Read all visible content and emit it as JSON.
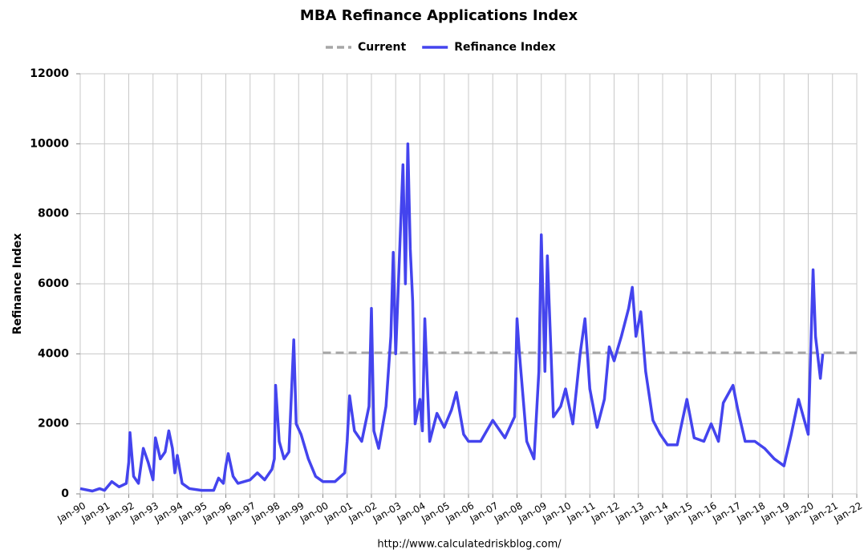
{
  "chart_data": {
    "type": "line",
    "title": "MBA Refinance Applications Index",
    "y_label": "Refinance Index",
    "source": "http://www.calculatedriskblog.com/",
    "xlim": [
      1990,
      2022
    ],
    "xticks": [
      {
        "value": 1990,
        "label": "Jan-90"
      },
      {
        "value": 1991,
        "label": "Jan-91"
      },
      {
        "value": 1992,
        "label": "Jan-92"
      },
      {
        "value": 1993,
        "label": "Jan-93"
      },
      {
        "value": 1994,
        "label": "Jan-94"
      },
      {
        "value": 1995,
        "label": "Jan-95"
      },
      {
        "value": 1996,
        "label": "Jan-96"
      },
      {
        "value": 1997,
        "label": "Jan-97"
      },
      {
        "value": 1998,
        "label": "Jan-98"
      },
      {
        "value": 1999,
        "label": "Jan-99"
      },
      {
        "value": 2000,
        "label": "Jan-00"
      },
      {
        "value": 2001,
        "label": "Jan-01"
      },
      {
        "value": 2002,
        "label": "Jan-02"
      },
      {
        "value": 2003,
        "label": "Jan-03"
      },
      {
        "value": 2004,
        "label": "Jan-04"
      },
      {
        "value": 2005,
        "label": "Jan-05"
      },
      {
        "value": 2006,
        "label": "Jan-06"
      },
      {
        "value": 2007,
        "label": "Jan-07"
      },
      {
        "value": 2008,
        "label": "Jan-08"
      },
      {
        "value": 2009,
        "label": "Jan-09"
      },
      {
        "value": 2010,
        "label": "Jan-10"
      },
      {
        "value": 2011,
        "label": "Jan-11"
      },
      {
        "value": 2012,
        "label": "Jan-12"
      },
      {
        "value": 2013,
        "label": "Jan-13"
      },
      {
        "value": 2014,
        "label": "Jan-14"
      },
      {
        "value": 2015,
        "label": "Jan-15"
      },
      {
        "value": 2016,
        "label": "Jan-16"
      },
      {
        "value": 2017,
        "label": "Jan-17"
      },
      {
        "value": 2018,
        "label": "Jan-18"
      },
      {
        "value": 2019,
        "label": "Jan-19"
      },
      {
        "value": 2020,
        "label": "Jan-20"
      },
      {
        "value": 2021,
        "label": "Jan-21"
      },
      {
        "value": 2022,
        "label": "Jan-22"
      }
    ],
    "ylim": [
      0,
      12000
    ],
    "yticks": [
      0,
      2000,
      4000,
      6000,
      8000,
      10000,
      12000
    ],
    "grid": true,
    "series": [
      {
        "name": "Current",
        "color": "#a6a6a6",
        "dashed": true,
        "x": [
          2000,
          2022
        ],
        "values": [
          4030,
          4030
        ]
      },
      {
        "name": "Refinance Index",
        "color": "#4444ee",
        "dashed": false,
        "x": [
          1990.0,
          1990.5,
          1990.8,
          1991.0,
          1991.3,
          1991.6,
          1991.9,
          1992.0,
          1992.05,
          1992.2,
          1992.4,
          1992.6,
          1992.8,
          1993.0,
          1993.1,
          1993.3,
          1993.5,
          1993.65,
          1993.8,
          1993.9,
          1994.0,
          1994.2,
          1994.5,
          1995.0,
          1995.5,
          1995.7,
          1995.9,
          1996.0,
          1996.1,
          1996.3,
          1996.5,
          1997.0,
          1997.3,
          1997.6,
          1997.9,
          1998.0,
          1998.05,
          1998.2,
          1998.4,
          1998.6,
          1998.8,
          1998.9,
          1999.1,
          1999.4,
          1999.7,
          2000.0,
          2000.5,
          2000.9,
          2001.0,
          2001.1,
          2001.3,
          2001.6,
          2001.9,
          2002.0,
          2002.1,
          2002.3,
          2002.6,
          2002.8,
          2002.9,
          2003.0,
          2003.1,
          2003.3,
          2003.4,
          2003.5,
          2003.6,
          2003.7,
          2003.8,
          2004.0,
          2004.1,
          2004.2,
          2004.4,
          2004.7,
          2005.0,
          2005.3,
          2005.5,
          2005.8,
          2006.0,
          2006.5,
          2007.0,
          2007.5,
          2007.9,
          2008.0,
          2008.1,
          2008.4,
          2008.7,
          2008.9,
          2009.0,
          2009.15,
          2009.25,
          2009.5,
          2009.8,
          2010.0,
          2010.3,
          2010.6,
          2010.8,
          2011.0,
          2011.3,
          2011.6,
          2011.8,
          2012.0,
          2012.3,
          2012.6,
          2012.75,
          2012.9,
          2013.1,
          2013.3,
          2013.6,
          2013.9,
          2014.2,
          2014.6,
          2015.0,
          2015.3,
          2015.7,
          2016.0,
          2016.3,
          2016.5,
          2016.9,
          2017.1,
          2017.4,
          2017.8,
          2018.2,
          2018.6,
          2019.0,
          2019.3,
          2019.6,
          2019.8,
          2020.0,
          2020.2,
          2020.3,
          2020.5,
          2020.6
        ],
        "values": [
          150,
          80,
          150,
          100,
          350,
          200,
          300,
          900,
          1750,
          500,
          300,
          1300,
          900,
          400,
          1600,
          1000,
          1200,
          1800,
          1300,
          600,
          1100,
          300,
          150,
          100,
          100,
          450,
          300,
          800,
          1150,
          500,
          300,
          400,
          600,
          400,
          700,
          1000,
          3100,
          1500,
          1000,
          1200,
          4400,
          2000,
          1700,
          1000,
          500,
          350,
          350,
          600,
          1500,
          2800,
          1800,
          1500,
          2500,
          5300,
          1800,
          1300,
          2500,
          4500,
          6900,
          4000,
          5800,
          9400,
          6000,
          10000,
          7000,
          5500,
          2000,
          2700,
          1800,
          5000,
          1500,
          2300,
          1900,
          2400,
          2900,
          1700,
          1500,
          1500,
          2100,
          1600,
          2200,
          5000,
          4000,
          1500,
          1000,
          3500,
          7400,
          3500,
          6800,
          2200,
          2500,
          3000,
          2000,
          4000,
          5000,
          3000,
          1900,
          2700,
          4200,
          3800,
          4500,
          5300,
          5900,
          4500,
          5200,
          3500,
          2100,
          1700,
          1400,
          1400,
          2700,
          1600,
          1500,
          2000,
          1500,
          2600,
          3100,
          2400,
          1500,
          1500,
          1300,
          1000,
          800,
          1700,
          2700,
          2200,
          1700,
          6400,
          4500,
          3300,
          4000
        ]
      }
    ]
  }
}
